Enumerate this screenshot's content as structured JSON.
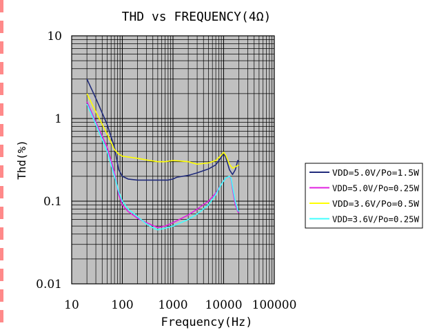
{
  "chart_data": {
    "type": "line",
    "title": "THD vs FREQUENCY(4Ω)",
    "xlabel": "Frequency(Hz)",
    "ylabel": "Thd(%)",
    "x_scale": "log",
    "y_scale": "log",
    "xlim": [
      10,
      100000
    ],
    "ylim": [
      0.01,
      10
    ],
    "x_ticks": [
      "10",
      "100",
      "1000",
      "10000",
      "100000"
    ],
    "y_ticks": [
      "10",
      "1",
      "0.1",
      "0.01"
    ],
    "grid": true,
    "plot_background": "#c0c0c0",
    "legend_position": "right",
    "series": [
      {
        "name": "VDD=5.0V/Po=1.5W",
        "color": "#1f2a7a",
        "x": [
          20,
          30,
          50,
          70,
          85,
          100,
          130,
          200,
          300,
          500,
          800,
          1000,
          1200,
          2000,
          3000,
          5000,
          7000,
          9000,
          10000,
          11000,
          13000,
          15000,
          17000,
          19000,
          20000
        ],
        "y": [
          3.0,
          1.75,
          0.85,
          0.45,
          0.24,
          0.2,
          0.185,
          0.18,
          0.18,
          0.18,
          0.18,
          0.185,
          0.195,
          0.205,
          0.22,
          0.245,
          0.275,
          0.34,
          0.38,
          0.34,
          0.24,
          0.21,
          0.24,
          0.31,
          0.3
        ]
      },
      {
        "name": "VDD=5.0V/Po=0.25W",
        "color": "#e020e0",
        "x": [
          20,
          30,
          50,
          70,
          85,
          100,
          130,
          200,
          300,
          500,
          700,
          1000,
          2000,
          3000,
          5000,
          7000,
          9000,
          11000,
          13000,
          14000,
          15000,
          17000,
          19000,
          20000
        ],
        "y": [
          1.6,
          0.9,
          0.45,
          0.22,
          0.12,
          0.09,
          0.075,
          0.062,
          0.055,
          0.048,
          0.05,
          0.055,
          0.068,
          0.08,
          0.1,
          0.125,
          0.16,
          0.19,
          0.2,
          0.185,
          0.14,
          0.09,
          0.075,
          0.072
        ]
      },
      {
        "name": "VDD=3.6V/Po=0.5W",
        "color": "#ffff00",
        "x": [
          20,
          30,
          50,
          70,
          85,
          100,
          200,
          300,
          500,
          700,
          1000,
          2000,
          3000,
          5000,
          7000,
          9000,
          10000,
          11000,
          13000,
          15000,
          17000,
          19000,
          20000
        ],
        "y": [
          2.0,
          1.2,
          0.65,
          0.42,
          0.37,
          0.35,
          0.33,
          0.315,
          0.3,
          0.3,
          0.31,
          0.3,
          0.28,
          0.29,
          0.31,
          0.36,
          0.39,
          0.36,
          0.28,
          0.25,
          0.26,
          0.27,
          0.27
        ]
      },
      {
        "name": "VDD=3.6V/Po=0.25W",
        "color": "#40ffff",
        "x": [
          20,
          30,
          50,
          70,
          85,
          100,
          130,
          200,
          300,
          450,
          500,
          700,
          1000,
          2000,
          3000,
          5000,
          7000,
          9000,
          11000,
          13000,
          14000,
          15000,
          17000,
          19000,
          20000
        ],
        "y": [
          1.5,
          0.85,
          0.4,
          0.2,
          0.13,
          0.1,
          0.08,
          0.065,
          0.053,
          0.046,
          0.045,
          0.047,
          0.05,
          0.06,
          0.07,
          0.09,
          0.12,
          0.16,
          0.19,
          0.2,
          0.19,
          0.15,
          0.1,
          0.078,
          0.075
        ]
      }
    ]
  }
}
